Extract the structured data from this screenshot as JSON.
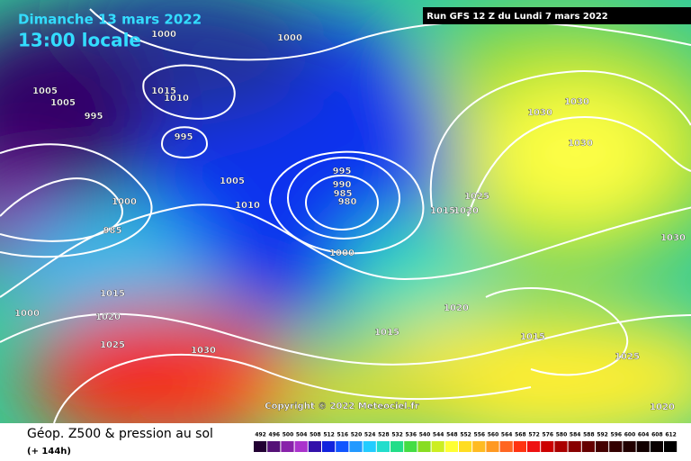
{
  "header": {
    "date": "Dimanche 13 mars 2022",
    "time": "13:00 locale",
    "run": "Run GFS 12 Z du Lundi 7 mars 2022"
  },
  "isobar_labels": [
    "1000",
    "1000",
    "1005",
    "1005",
    "995",
    "1015",
    "1010",
    "995",
    "1005",
    "1010",
    "1000",
    "995",
    "990",
    "985",
    "980",
    "1000",
    "1015",
    "1020",
    "1025",
    "1030",
    "1030",
    "1030",
    "1030",
    "1020",
    "1015",
    "1015",
    "1025",
    "1020",
    "1030",
    "1025",
    "1020",
    "1015",
    "1000",
    "985"
  ],
  "copyright": "Copyright © 2022 Meteociel.fr",
  "footer": {
    "title": "Géop. Z500 & pression au sol",
    "lead": "(+ 144h)"
  },
  "legend": {
    "values": [
      492,
      496,
      500,
      504,
      508,
      512,
      516,
      520,
      524,
      528,
      532,
      536,
      540,
      544,
      548,
      552,
      556,
      560,
      564,
      568,
      572,
      576,
      580,
      584,
      588,
      592,
      596,
      600,
      604,
      608,
      612
    ]
  }
}
